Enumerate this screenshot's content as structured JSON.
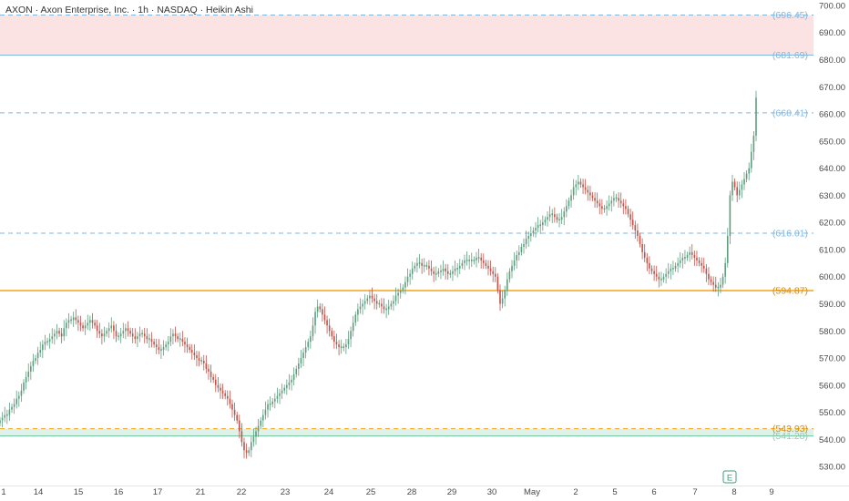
{
  "header": {
    "title": "AXON · Axon Enterprise, Inc. · 1h · NASDAQ · Heikin Ashi"
  },
  "colors": {
    "up": "#5e9e7e",
    "down": "#c1534a",
    "resistance_zone": "#fbe3e3",
    "support_zone": "#dff2ea",
    "blue_level": "#7fb7e3",
    "orange_level": "#f4a21a",
    "axis_text": "#4a4a4a"
  },
  "chart_data": {
    "type": "candlestick",
    "style": "Heikin Ashi",
    "ylim": [
      523,
      702
    ],
    "yticks": [
      "700.00",
      "690.00",
      "680.00",
      "670.00",
      "660.00",
      "650.00",
      "640.00",
      "630.00",
      "620.00",
      "610.00",
      "600.00",
      "590.00",
      "580.00",
      "570.00",
      "560.00",
      "550.00",
      "540.00",
      "530.00"
    ],
    "x_labels": [
      "1",
      "14",
      "15",
      "16",
      "17",
      "21",
      "22",
      "23",
      "24",
      "25",
      "28",
      "29",
      "30",
      "May",
      "2",
      "5",
      "6",
      "7",
      "8",
      "9"
    ],
    "levels": [
      {
        "label": "(696.45)",
        "value": 696.45,
        "style": "dashed",
        "color": "blue"
      },
      {
        "label": "(681.69)",
        "value": 681.69,
        "style": "solid",
        "color": "blue"
      },
      {
        "label": "(660.41)",
        "value": 660.41,
        "style": "dashed",
        "color": "blue"
      },
      {
        "label": "(616.01)",
        "value": 616.01,
        "style": "dashed",
        "color": "blue"
      },
      {
        "label": "(594.87)",
        "value": 594.87,
        "style": "solid",
        "color": "orange"
      },
      {
        "label": "(543.93)",
        "value": 543.93,
        "style": "dashed",
        "color": "orange"
      },
      {
        "label": "(541.28)",
        "value": 541.28,
        "style": "solid",
        "color": "green"
      }
    ],
    "zones": [
      {
        "from": 681.69,
        "to": 696.45,
        "color": "resistance"
      },
      {
        "from": 541.28,
        "to": 543.93,
        "color": "support"
      }
    ],
    "marker": {
      "label": "E",
      "x_label": "8"
    },
    "closes": [
      547,
      548,
      549,
      549,
      551,
      552,
      553,
      555,
      556,
      558,
      561,
      563,
      565,
      567,
      569,
      570,
      572,
      573,
      575,
      576,
      576,
      577,
      578,
      579,
      580,
      579,
      578,
      581,
      583,
      584,
      584,
      585,
      584,
      583,
      582,
      581,
      582,
      583,
      584,
      583,
      582,
      580,
      579,
      578,
      579,
      580,
      581,
      582,
      580,
      578,
      578,
      579,
      580,
      581,
      580,
      579,
      578,
      577,
      578,
      579,
      579,
      578,
      577,
      577,
      576,
      575,
      574,
      573,
      573,
      574,
      575,
      576,
      578,
      579,
      578,
      577,
      577,
      576,
      575,
      574,
      573,
      572,
      571,
      570,
      569,
      569,
      568,
      566,
      565,
      563,
      562,
      560,
      559,
      558,
      557,
      556,
      555,
      553,
      551,
      549,
      547,
      543,
      539,
      536,
      535,
      536,
      539,
      541,
      543,
      545,
      547,
      549,
      551,
      553,
      553,
      554,
      555,
      556,
      557,
      558,
      559,
      560,
      561,
      562,
      564,
      566,
      568,
      570,
      572,
      574,
      576,
      578,
      582,
      587,
      589,
      588,
      586,
      584,
      582,
      580,
      578,
      576,
      575,
      574,
      574,
      574,
      575,
      577,
      580,
      583,
      586,
      588,
      589,
      590,
      591,
      592,
      593,
      592,
      591,
      590,
      590,
      589,
      588,
      588,
      589,
      590,
      591,
      593,
      594,
      595,
      596,
      598,
      600,
      601,
      603,
      604,
      605,
      605,
      604,
      604,
      604,
      603,
      602,
      601,
      601,
      602,
      602,
      603,
      602,
      601,
      601,
      602,
      603,
      603,
      604,
      605,
      606,
      606,
      606,
      606,
      606,
      607,
      607,
      606,
      605,
      604,
      603,
      602,
      601,
      600,
      595,
      590,
      592,
      595,
      599,
      602,
      604,
      606,
      608,
      609,
      611,
      612,
      614,
      615,
      616,
      617,
      618,
      619,
      619,
      620,
      621,
      622,
      623,
      623,
      622,
      621,
      621,
      622,
      624,
      626,
      628,
      630,
      633,
      634,
      635,
      634,
      633,
      632,
      631,
      630,
      629,
      628,
      627,
      626,
      625,
      625,
      626,
      627,
      628,
      629,
      629,
      628,
      627,
      626,
      625,
      623,
      621,
      619,
      617,
      615,
      612,
      609,
      607,
      605,
      603,
      602,
      601,
      600,
      599,
      599,
      600,
      601,
      602,
      603,
      603,
      604,
      605,
      606,
      607,
      607,
      608,
      609,
      608,
      607,
      606,
      605,
      604,
      603,
      601,
      599,
      598,
      597,
      596,
      596,
      597,
      600,
      605,
      615,
      630,
      635,
      633,
      630,
      632,
      634,
      636,
      638,
      640,
      646,
      652,
      666
    ]
  }
}
